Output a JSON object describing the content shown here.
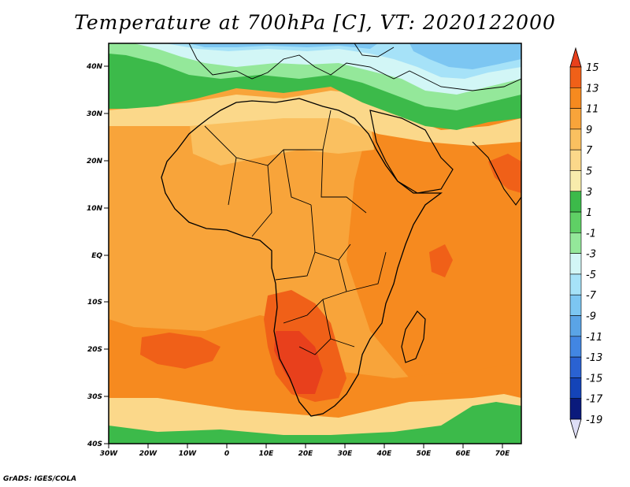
{
  "title": "Temperature at 700hPa [C], VT: 2020122000",
  "credit": "GrADS: IGES/COLA",
  "lat_labels": [
    "40N",
    "30N",
    "20N",
    "10N",
    "EQ",
    "10S",
    "20S",
    "30S",
    "40S"
  ],
  "lon_labels": [
    "30W",
    "20W",
    "10W",
    "0",
    "10E",
    "20E",
    "30E",
    "40E",
    "50E",
    "60E",
    "70E"
  ],
  "colorbar": {
    "labels": [
      "15",
      "13",
      "11",
      "9",
      "7",
      "5",
      "3",
      "1",
      "-1",
      "-3",
      "-5",
      "-7",
      "-9",
      "-11",
      "-13",
      "-15",
      "-17",
      "-19"
    ],
    "colors": [
      "#e8401c",
      "#f06018",
      "#f68a1f",
      "#f8a43a",
      "#fac060",
      "#fbd88a",
      "#f8ecac",
      "#3cba4a",
      "#5fd065",
      "#94e89a",
      "#d2f6f6",
      "#a6e2f8",
      "#7cc6f2",
      "#5aa4e6",
      "#4286e2",
      "#2a62d2",
      "#1444b8",
      "#0a1a7c",
      "#dedef6"
    ]
  },
  "map": {
    "lon_range": [
      -30,
      75
    ],
    "lat_range": [
      -40,
      45
    ],
    "colors": {
      "dark_red": "#e8401c",
      "red_orange": "#f06018",
      "orange": "#f68a1f",
      "light_orange": "#f8a43a",
      "amber": "#fac060",
      "pale": "#fbd88a",
      "green": "#3cba4a",
      "light_green": "#94e89a",
      "cyan": "#d2f6f6",
      "light_blue": "#a6e2f8",
      "blue": "#7cc6f2"
    }
  }
}
